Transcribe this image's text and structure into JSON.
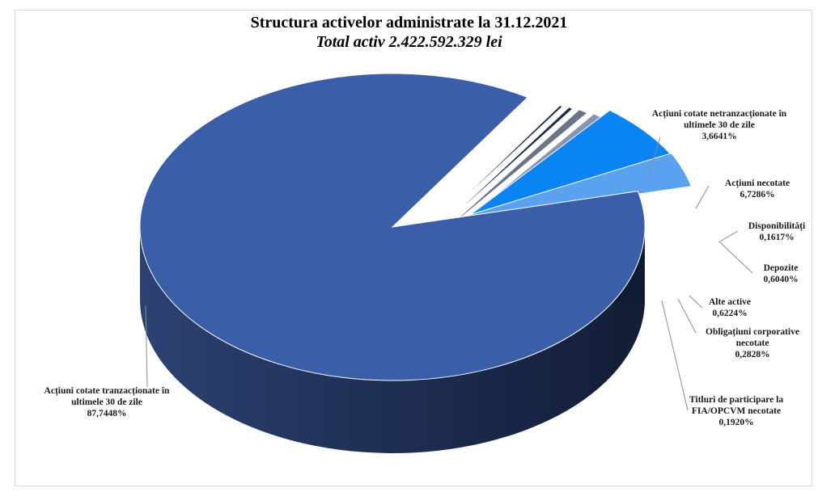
{
  "chart_data": {
    "type": "pie",
    "title": "Structura activelor administrate la 31.12.2021",
    "subtitle": "Total activ 2.422.592.329 lei",
    "slices": [
      {
        "label": "Acțiuni cotate tranzacționate în ultimele 30 de zile",
        "lines": [
          "Acțiuni cotate tranzacționate în",
          "ultimele 30 de zile",
          "87,7448%"
        ],
        "value": 87.7448,
        "color": "#3a5fa8"
      },
      {
        "label": "Titluri de participare la FIA/OPCVM necotate",
        "lines": [
          "Titluri de participare la",
          "FIA/OPCVM necotate",
          "0,1920%"
        ],
        "value": 0.192,
        "color": "#12213f"
      },
      {
        "label": "Obligațiuni corporative necotate",
        "lines": [
          "Obligațiuni corporative",
          "necotate",
          "0,2828%"
        ],
        "value": 0.2828,
        "color": "#1b2a4c"
      },
      {
        "label": "Alte active",
        "lines": [
          "Alte active",
          "0,6224%"
        ],
        "value": 0.6224,
        "color": "#6b7386"
      },
      {
        "label": "Depozite",
        "lines": [
          "Depozite",
          "0,6040%"
        ],
        "value": 0.604,
        "color": "#8793b6"
      },
      {
        "label": "Disponibilități",
        "lines": [
          "Disponibilități",
          "0,1617%"
        ],
        "value": 0.1617,
        "color": "#c7d2ea"
      },
      {
        "label": "Acțiuni necotate",
        "lines": [
          "Acțiuni necotate",
          "6,7286%"
        ],
        "value": 6.7286,
        "color": "#0a84f2"
      },
      {
        "label": "Acțiuni cotate netranzacționate în ultimele 30 de zile",
        "lines": [
          "Acțiuni cotate netranzacționate în",
          "ultimele 30 de zile",
          "3,6641%"
        ],
        "value": 3.6641,
        "color": "#5aa2f0"
      }
    ]
  }
}
